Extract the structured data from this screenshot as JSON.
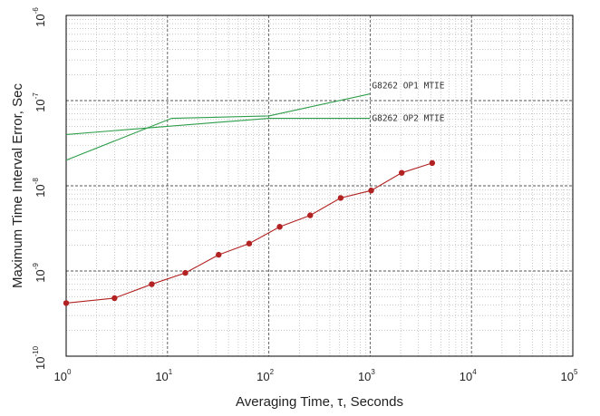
{
  "chart_data": {
    "type": "line",
    "xlabel": "Averaging Time, τ, Seconds",
    "ylabel": "Maximum Time Interval Error, Sec",
    "xscale": "log",
    "yscale": "log",
    "xlim": [
      1,
      100000
    ],
    "ylim": [
      1e-10,
      1e-06
    ],
    "grid": true,
    "x_ticks": [
      {
        "base": "10",
        "exp": "0",
        "value": 1
      },
      {
        "base": "10",
        "exp": "1",
        "value": 10
      },
      {
        "base": "10",
        "exp": "2",
        "value": 100
      },
      {
        "base": "10",
        "exp": "3",
        "value": 1000
      },
      {
        "base": "10",
        "exp": "4",
        "value": 10000
      },
      {
        "base": "10",
        "exp": "5",
        "value": 100000
      }
    ],
    "y_ticks": [
      {
        "base": "10",
        "exp": "-10",
        "value": 1e-10
      },
      {
        "base": "10",
        "exp": "-9",
        "value": 1e-09
      },
      {
        "base": "10",
        "exp": "-8",
        "value": 1e-08
      },
      {
        "base": "10",
        "exp": "-7",
        "value": 1e-07
      },
      {
        "base": "10",
        "exp": "-6",
        "value": 1e-06
      }
    ],
    "series": [
      {
        "name": "G8262 OP1 MTIE",
        "color": "#2e9e4a",
        "x": [
          1,
          11,
          100,
          1000
        ],
        "y": [
          2e-08,
          6.2e-08,
          6.6e-08,
          1.2e-07
        ],
        "markers": false
      },
      {
        "name": "G8262 OP2 MTIE",
        "color": "#2e9e4a",
        "x": [
          1,
          100,
          1000
        ],
        "y": [
          4e-08,
          6.2e-08,
          6.2e-08
        ],
        "markers": false
      },
      {
        "name": "",
        "color": "#b22222",
        "x": [
          1,
          3,
          7,
          15,
          32,
          64,
          128,
          256,
          512,
          1024,
          2048,
          4096
        ],
        "y": [
          4.2e-10,
          4.8e-10,
          7e-10,
          9.5e-10,
          1.55e-09,
          2.1e-09,
          3.3e-09,
          4.5e-09,
          7.2e-09,
          8.8e-09,
          1.42e-08,
          1.85e-08
        ],
        "markers": true
      }
    ],
    "annotations": [
      {
        "text": "G8262  OP1  MTIE",
        "series": 0
      },
      {
        "text": "G8262  OP2  MTIE",
        "series": 1
      }
    ]
  }
}
